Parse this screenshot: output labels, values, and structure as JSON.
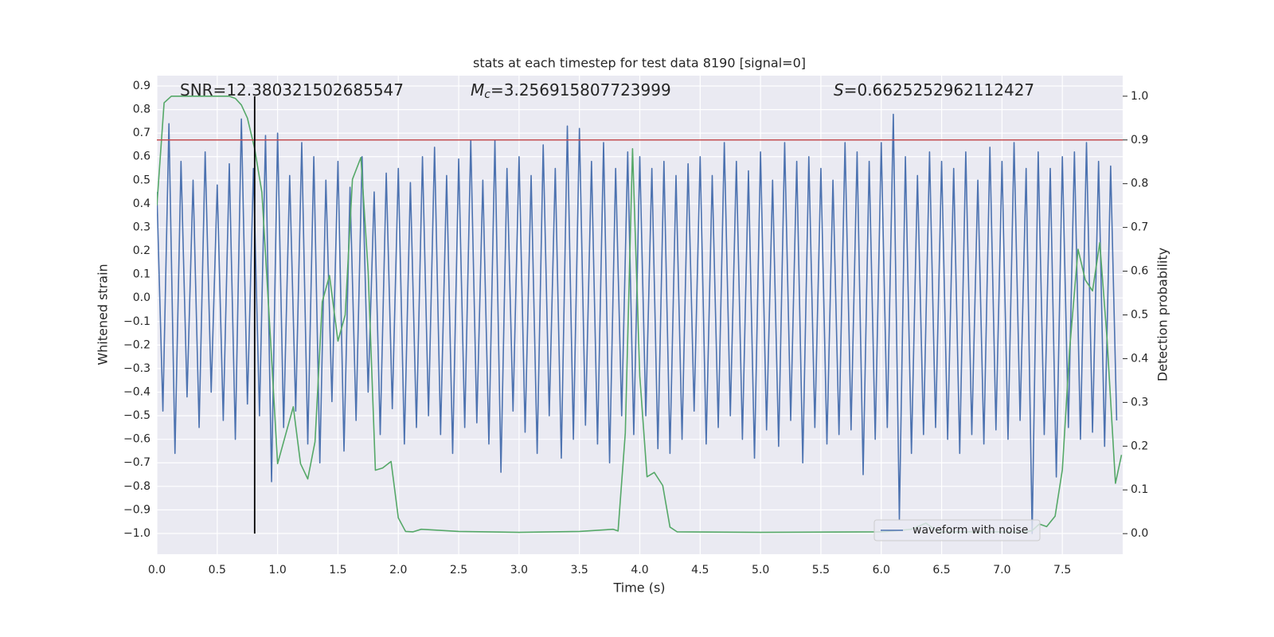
{
  "chart_data": {
    "type": "line",
    "title": "stats at each timestep for test data 8190 [signal=0]",
    "x_label": "Time (s)",
    "y_label": "Whitened strain",
    "y2_label": "Detection probability",
    "xlim": [
      0,
      8
    ],
    "ylim": [
      -1.088,
      0.944
    ],
    "y2lim": [
      -0.047,
      1.047
    ],
    "xticks": [
      {
        "value": 0,
        "label": "0.0"
      },
      0.5,
      {
        "value": 1,
        "label": "1.0"
      },
      1.5,
      {
        "value": 2,
        "label": "2.0"
      },
      2.5,
      {
        "value": 3,
        "label": "3.0"
      },
      3.5,
      {
        "value": 4,
        "label": "4.0"
      },
      4.5,
      {
        "value": 5,
        "label": "5.0"
      },
      5.5,
      {
        "value": 6,
        "label": "6.0"
      },
      6.5,
      {
        "value": 7,
        "label": "7.0"
      },
      7.5
    ],
    "yticks": [
      0.9,
      0.8,
      0.7,
      0.6,
      0.5,
      0.4,
      0.3,
      0.2,
      0.1,
      {
        "value": 0,
        "label": "0.0"
      },
      {
        "value": -0.1,
        "label": "−0.1"
      },
      {
        "value": -0.2,
        "label": "−0.2"
      },
      {
        "value": -0.3,
        "label": "−0.3"
      },
      {
        "value": -0.4,
        "label": "−0.4"
      },
      {
        "value": -0.5,
        "label": "−0.5"
      },
      {
        "value": -0.6,
        "label": "−0.6"
      },
      {
        "value": -0.7,
        "label": "−0.7"
      },
      {
        "value": -0.8,
        "label": "−0.8"
      },
      {
        "value": -0.9,
        "label": "−0.9"
      },
      {
        "value": -1,
        "label": "−1.0"
      }
    ],
    "y2ticks": [
      {
        "value": 1,
        "label": "1.0"
      },
      0.9,
      0.8,
      0.7,
      0.6,
      0.5,
      0.4,
      0.3,
      0.2,
      0.1,
      {
        "value": 0,
        "label": "0.0"
      }
    ],
    "grid": true,
    "legend": "lower right",
    "series": [
      {
        "name": "waveform with noise",
        "color": "#4c72b0",
        "x": [
          0,
          0.05,
          0.1,
          0.15,
          0.2,
          0.25,
          0.3,
          0.35,
          0.4,
          0.45,
          0.5,
          0.55,
          0.6,
          0.65,
          0.7,
          0.75,
          0.8,
          0.85,
          0.9,
          0.95,
          1,
          1.05,
          1.1,
          1.15,
          1.2,
          1.25,
          1.3,
          1.35,
          1.4,
          1.45,
          1.5,
          1.55,
          1.6,
          1.65,
          1.7,
          1.75,
          1.8,
          1.85,
          1.9,
          1.95,
          2,
          2.05,
          2.1,
          2.15,
          2.2,
          2.25,
          2.3,
          2.35,
          2.4,
          2.45,
          2.5,
          2.55,
          2.6,
          2.65,
          2.7,
          2.75,
          2.8,
          2.85,
          2.9,
          2.95,
          3,
          3.05,
          3.1,
          3.15,
          3.2,
          3.25,
          3.3,
          3.35,
          3.4,
          3.45,
          3.5,
          3.55,
          3.6,
          3.65,
          3.7,
          3.75,
          3.8,
          3.85,
          3.9,
          3.95,
          4,
          4.05,
          4.1,
          4.15,
          4.2,
          4.25,
          4.3,
          4.35,
          4.4,
          4.45,
          4.5,
          4.55,
          4.6,
          4.65,
          4.7,
          4.75,
          4.8,
          4.85,
          4.9,
          4.95,
          5,
          5.05,
          5.1,
          5.15,
          5.2,
          5.25,
          5.3,
          5.35,
          5.4,
          5.45,
          5.5,
          5.55,
          5.6,
          5.65,
          5.7,
          5.75,
          5.8,
          5.85,
          5.9,
          5.95,
          6,
          6.05,
          6.1,
          6.15,
          6.2,
          6.25,
          6.3,
          6.35,
          6.4,
          6.45,
          6.5,
          6.55,
          6.6,
          6.65,
          6.7,
          6.75,
          6.8,
          6.85,
          6.9,
          6.95,
          7,
          7.05,
          7.1,
          7.15,
          7.2,
          7.25,
          7.3,
          7.35,
          7.4,
          7.45,
          7.5,
          7.55,
          7.6,
          7.65,
          7.7,
          7.75,
          7.8,
          7.85,
          7.9,
          7.95
        ],
        "values": [
          0.45,
          -0.48,
          0.74,
          -0.66,
          0.58,
          -0.42,
          0.5,
          -0.55,
          0.62,
          -0.4,
          0.48,
          -0.52,
          0.57,
          -0.6,
          0.76,
          -0.45,
          0.55,
          -0.5,
          0.69,
          -0.78,
          0.7,
          -0.55,
          0.52,
          -0.48,
          0.66,
          -0.62,
          0.6,
          -0.7,
          0.5,
          -0.44,
          0.58,
          -0.65,
          0.47,
          -0.52,
          0.6,
          -0.4,
          0.45,
          -0.58,
          0.53,
          -0.47,
          0.55,
          -0.62,
          0.49,
          -0.55,
          0.6,
          -0.5,
          0.64,
          -0.58,
          0.52,
          -0.66,
          0.59,
          -0.55,
          0.67,
          -0.53,
          0.5,
          -0.62,
          0.67,
          -0.74,
          0.55,
          -0.48,
          0.6,
          -0.57,
          0.52,
          -0.66,
          0.65,
          -0.5,
          0.55,
          -0.68,
          0.73,
          -0.6,
          0.72,
          -0.54,
          0.58,
          -0.62,
          0.66,
          -0.7,
          0.55,
          -0.5,
          0.62,
          -0.58,
          0.6,
          -0.5,
          0.55,
          -0.64,
          0.58,
          -0.66,
          0.52,
          -0.6,
          0.57,
          -0.48,
          0.6,
          -0.62,
          0.52,
          -0.55,
          0.66,
          -0.5,
          0.58,
          -0.6,
          0.54,
          -0.68,
          0.62,
          -0.56,
          0.5,
          -0.63,
          0.66,
          -0.52,
          0.58,
          -0.7,
          0.6,
          -0.55,
          0.55,
          -0.62,
          0.5,
          -0.58,
          0.66,
          -0.56,
          0.62,
          -0.75,
          0.58,
          -0.6,
          0.66,
          -0.55,
          0.78,
          -0.94,
          0.6,
          -0.66,
          0.52,
          -0.58,
          0.62,
          -0.55,
          0.58,
          -0.6,
          0.55,
          -0.66,
          0.62,
          -0.58,
          0.5,
          -0.62,
          0.64,
          -0.56,
          0.58,
          -0.6,
          0.66,
          -0.52,
          0.55,
          -1.0,
          0.62,
          -0.58,
          0.55,
          -0.76,
          0.6,
          -0.55,
          0.62,
          -0.6,
          0.66,
          -0.57,
          0.58,
          -0.63,
          0.56,
          -0.52
        ]
      },
      {
        "color": "#55a868",
        "axis": "y2",
        "x": [
          0,
          0.06,
          0.12,
          0.2,
          0.3,
          0.4,
          0.5,
          0.6,
          0.65,
          0.7,
          0.75,
          0.81,
          0.87,
          0.94,
          1.0,
          1.13,
          1.19,
          1.25,
          1.31,
          1.37,
          1.43,
          1.5,
          1.56,
          1.62,
          1.69,
          1.75,
          1.81,
          1.87,
          1.94,
          2.0,
          2.06,
          2.12,
          2.19,
          2.5,
          3.0,
          3.5,
          3.78,
          3.82,
          3.88,
          3.94,
          4.0,
          4.06,
          4.12,
          4.19,
          4.25,
          4.31,
          5.0,
          6.0,
          6.1,
          6.25,
          6.37,
          6.44,
          6.5,
          7.2,
          7.25,
          7.31,
          7.37,
          7.44,
          7.5,
          7.56,
          7.63,
          7.69,
          7.75,
          7.81,
          7.87,
          7.94,
          7.99
        ],
        "values": [
          0.75,
          0.985,
          1.0,
          1.0,
          1.0,
          1.0,
          1.0,
          1.0,
          0.995,
          0.98,
          0.95,
          0.88,
          0.78,
          0.45,
          0.16,
          0.29,
          0.16,
          0.125,
          0.21,
          0.53,
          0.59,
          0.44,
          0.5,
          0.81,
          0.86,
          0.6,
          0.145,
          0.15,
          0.165,
          0.036,
          0.005,
          0.004,
          0.01,
          0.005,
          0.003,
          0.005,
          0.01,
          0.006,
          0.23,
          0.88,
          0.36,
          0.13,
          0.14,
          0.11,
          0.015,
          0.004,
          0.003,
          0.004,
          0.006,
          0.01,
          0.024,
          0.01,
          0.004,
          0.004,
          0.007,
          0.022,
          0.016,
          0.04,
          0.146,
          0.42,
          0.65,
          0.58,
          0.555,
          0.665,
          0.446,
          0.115,
          0.18
        ]
      }
    ],
    "hlines": [
      {
        "y": 0.9,
        "axis": "y2",
        "color": "#c44e52"
      }
    ],
    "vlines": [
      {
        "x": 0.81,
        "ymin": 0,
        "ymax": 1,
        "axis": "y2",
        "color": "#000000"
      }
    ],
    "annotations": [
      {
        "label": "SNR=",
        "value": 12.380321502685547
      },
      {
        "symbol": "M",
        "subscript": "c",
        "label": "=",
        "value": 3.256915807723999
      },
      {
        "symbol": "S",
        "label": "=",
        "value": 0.6625252962112427
      }
    ]
  }
}
